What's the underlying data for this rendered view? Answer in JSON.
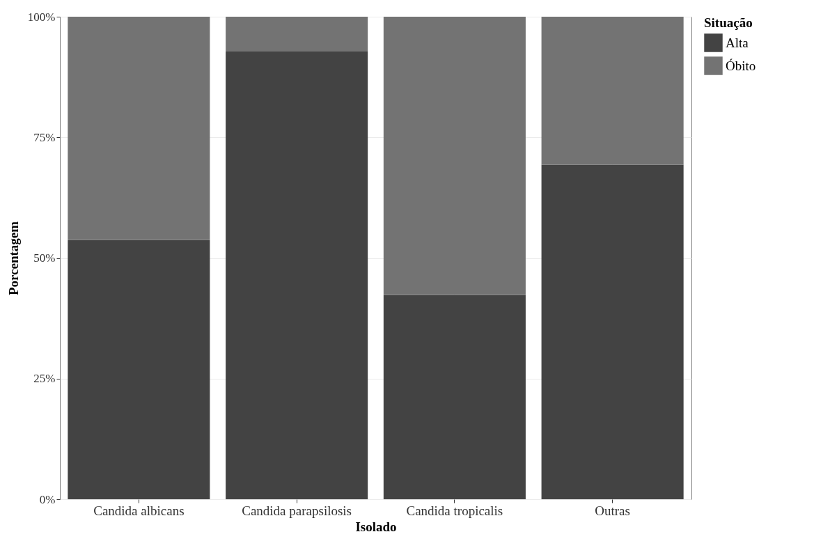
{
  "chart_data": {
    "type": "bar",
    "stacked": true,
    "xlabel": "Isolado",
    "ylabel": "Porcentagem",
    "legend_title": "Situação",
    "categories": [
      "Candida albicans",
      "Candida parapsilosis",
      "Candida tropicalis",
      "Outras"
    ],
    "series": [
      {
        "name": "Alta",
        "color": "#434343",
        "values": [
          53.7,
          92.8,
          42.3,
          69.3
        ]
      },
      {
        "name": "Óbito",
        "color": "#737373",
        "values": [
          46.3,
          7.2,
          57.7,
          30.7
        ]
      }
    ],
    "ylim": [
      0,
      100
    ],
    "yticks": [
      {
        "value": 0,
        "label": "0%"
      },
      {
        "value": 25,
        "label": "25%"
      },
      {
        "value": 50,
        "label": "50%"
      },
      {
        "value": 75,
        "label": "75%"
      },
      {
        "value": 100,
        "label": "100%"
      }
    ],
    "grid": true,
    "legend": "right"
  }
}
